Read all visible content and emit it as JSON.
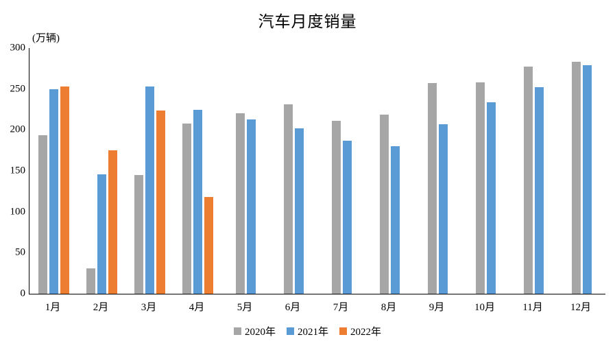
{
  "chart_data": {
    "type": "bar",
    "title": "汽车月度销量",
    "unit_label": "(万辆)",
    "categories": [
      "1月",
      "2月",
      "3月",
      "4月",
      "5月",
      "6月",
      "7月",
      "8月",
      "9月",
      "10月",
      "11月",
      "12月"
    ],
    "series": [
      {
        "name": "2020年",
        "color": "#A6A6A6",
        "values": [
          194,
          31,
          145,
          208,
          220,
          231,
          211,
          219,
          257,
          258,
          277,
          283
        ]
      },
      {
        "name": "2021年",
        "color": "#5B9BD5",
        "values": [
          250,
          146,
          253,
          225,
          213,
          202,
          187,
          180,
          207,
          234,
          252,
          279
        ]
      },
      {
        "name": "2022年",
        "color": "#ED7D31",
        "values": [
          253,
          175,
          224,
          118,
          null,
          null,
          null,
          null,
          null,
          null,
          null,
          null
        ]
      }
    ],
    "ylim": [
      0,
      300
    ],
    "yticks": [
      0,
      50,
      100,
      150,
      200,
      250,
      300
    ],
    "grid": false,
    "legend_position": "bottom",
    "axis_color": "#000000"
  }
}
